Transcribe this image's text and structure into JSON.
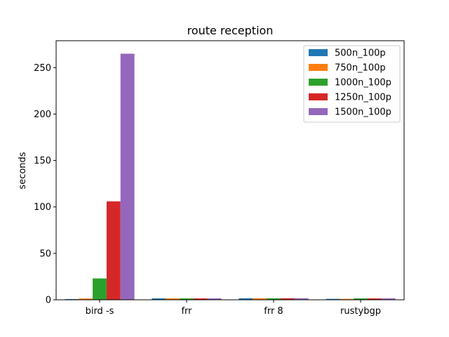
{
  "chart_data": {
    "type": "bar",
    "title": "route reception",
    "xlabel": "",
    "ylabel": "seconds",
    "categories": [
      "bird -s",
      "frr",
      "frr 8",
      "rustybgp"
    ],
    "ylim": [
      0,
      279
    ],
    "yticks": [
      0,
      50,
      100,
      150,
      200,
      250
    ],
    "grid": false,
    "legend_position": "top-right",
    "series": [
      {
        "name": "500n_100p",
        "color": "#1f77b4",
        "values": [
          0.8,
          1.5,
          1.6,
          1.0
        ]
      },
      {
        "name": "750n_100p",
        "color": "#ff7f0e",
        "values": [
          1.4,
          1.5,
          1.6,
          1.0
        ]
      },
      {
        "name": "1000n_100p",
        "color": "#2ca02c",
        "values": [
          23,
          1.5,
          1.6,
          1.5
        ]
      },
      {
        "name": "1250n_100p",
        "color": "#d62728",
        "values": [
          106,
          1.5,
          1.6,
          1.5
        ]
      },
      {
        "name": "1500n_100p",
        "color": "#9467bd",
        "values": [
          265,
          1.5,
          1.6,
          1.5
        ]
      }
    ]
  }
}
